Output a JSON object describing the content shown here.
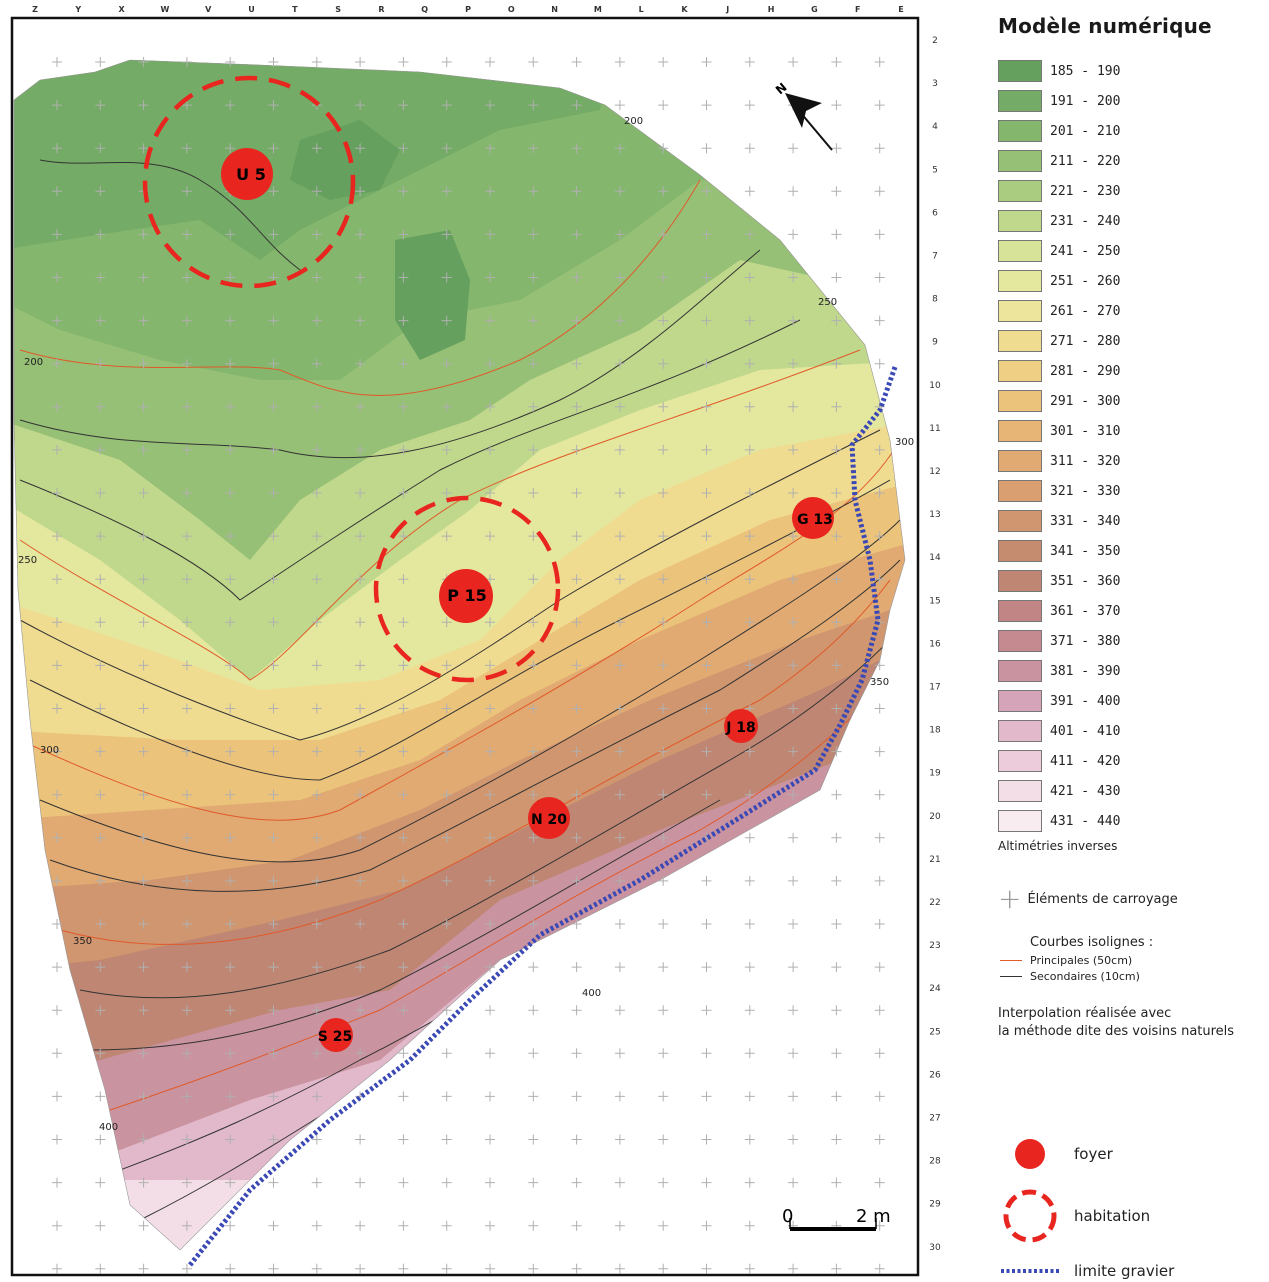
{
  "map": {
    "grid_columns": [
      "Z",
      "Y",
      "X",
      "W",
      "V",
      "U",
      "T",
      "S",
      "R",
      "Q",
      "P",
      "O",
      "N",
      "M",
      "L",
      "K",
      "J",
      "H",
      "G",
      "F",
      "E"
    ],
    "grid_rows": [
      "2",
      "3",
      "4",
      "5",
      "6",
      "7",
      "8",
      "9",
      "10",
      "11",
      "12",
      "13",
      "14",
      "15",
      "16",
      "17",
      "18",
      "19",
      "20",
      "21",
      "22",
      "23",
      "24",
      "25",
      "26",
      "27",
      "28",
      "29",
      "30"
    ],
    "isoline_labels": [
      "200",
      "200",
      "250",
      "250",
      "300",
      "300",
      "350",
      "350",
      "400",
      "400"
    ],
    "foyers": [
      {
        "label": "U 5",
        "habitation": true
      },
      {
        "label": "P 15",
        "habitation": true
      },
      {
        "label": "G 13",
        "habitation": false
      },
      {
        "label": "J 18",
        "habitation": false
      },
      {
        "label": "N 20",
        "habitation": false
      },
      {
        "label": "S 25",
        "habitation": false
      }
    ],
    "scale": {
      "start": "0",
      "end": "2 m"
    },
    "north_label": "N"
  },
  "legend": {
    "title": "Modèle numérique",
    "classes": [
      {
        "label": "185 - 190",
        "color": "#65a05e"
      },
      {
        "label": "191 - 200",
        "color": "#74ab66"
      },
      {
        "label": "201 - 210",
        "color": "#84b66d"
      },
      {
        "label": "211 - 220",
        "color": "#96c076"
      },
      {
        "label": "221 - 230",
        "color": "#aacc80"
      },
      {
        "label": "231 - 240",
        "color": "#c0d88c"
      },
      {
        "label": "241 - 250",
        "color": "#d6e399"
      },
      {
        "label": "251 - 260",
        "color": "#e4e79e"
      },
      {
        "label": "261 - 270",
        "color": "#ece59b"
      },
      {
        "label": "271 - 280",
        "color": "#f0dc91"
      },
      {
        "label": "281 - 290",
        "color": "#efcf84"
      },
      {
        "label": "291 - 300",
        "color": "#ecc37b"
      },
      {
        "label": "301 - 310",
        "color": "#e7b676"
      },
      {
        "label": "311 - 320",
        "color": "#e1aa72"
      },
      {
        "label": "321 - 330",
        "color": "#d99f70"
      },
      {
        "label": "331 - 340",
        "color": "#d0966f"
      },
      {
        "label": "341 - 350",
        "color": "#c68c70"
      },
      {
        "label": "351 - 360",
        "color": "#bf8674"
      },
      {
        "label": "361 - 370",
        "color": "#c08584"
      },
      {
        "label": "371 - 380",
        "color": "#c48a90"
      },
      {
        "label": "381 - 390",
        "color": "#ca93a0"
      },
      {
        "label": "391 - 400",
        "color": "#d6a4b8"
      },
      {
        "label": "401 - 410",
        "color": "#e2b8cb"
      },
      {
        "label": "411 - 420",
        "color": "#ecccdb"
      },
      {
        "label": "421 - 430",
        "color": "#f3dde7"
      },
      {
        "label": "431 - 440",
        "color": "#f8ecf1"
      }
    ],
    "note_inverse": "Altimétries inverses",
    "grid_elements": "Éléments de carroyage",
    "isolines_title": "Courbes isolignes :",
    "isoline_main": "Principales (50cm)",
    "isoline_secondary": "Secondaires (10cm)",
    "main_color": "#e05a2a",
    "secondary_color": "#333333",
    "interp_line1": "Interpolation réalisée avec",
    "interp_line2": "la méthode dite des voisins naturels",
    "foyer_label": "foyer",
    "habitation_label": "habitation",
    "gravel_label": "limite gravier",
    "foyer_color": "#e8261f",
    "gravel_color": "#3b49b5"
  }
}
